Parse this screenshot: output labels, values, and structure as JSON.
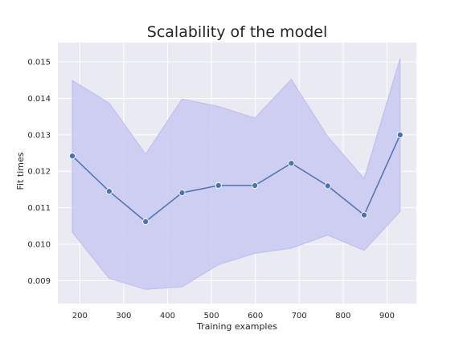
{
  "chart_data": {
    "type": "line",
    "title": "Scalability of the model",
    "xlabel": "Training examples",
    "ylabel": "Fit times",
    "xlim": [
      150,
      967
    ],
    "ylim": [
      0.00837,
      0.01553
    ],
    "xticks": [
      200,
      300,
      400,
      500,
      600,
      700,
      800,
      900
    ],
    "yticks": [
      0.009,
      0.01,
      0.011,
      0.012,
      0.013,
      0.014,
      0.015
    ],
    "ytick_labels": [
      "0.009",
      "0.010",
      "0.011",
      "0.012",
      "0.013",
      "0.014",
      "0.015"
    ],
    "grid": true,
    "series": [
      {
        "x": [
          183,
          267,
          350,
          433,
          516,
          599,
          682,
          765,
          848,
          930
        ],
        "y": [
          0.01242,
          0.01145,
          0.01062,
          0.01141,
          0.01161,
          0.01161,
          0.01222,
          0.0116,
          0.0108,
          0.013
        ],
        "lower": [
          0.01033,
          0.00906,
          0.00876,
          0.00883,
          0.00944,
          0.00975,
          0.00989,
          0.01025,
          0.00983,
          0.0109
        ],
        "upper": [
          0.01449,
          0.01387,
          0.01247,
          0.01398,
          0.01378,
          0.01346,
          0.01452,
          0.01295,
          0.0118,
          0.0151
        ]
      }
    ],
    "colors": {
      "line": "#4c72b0",
      "band": "#c9c9f2",
      "plot_bg": "#eaeaf2",
      "grid": "#ffffff"
    }
  }
}
